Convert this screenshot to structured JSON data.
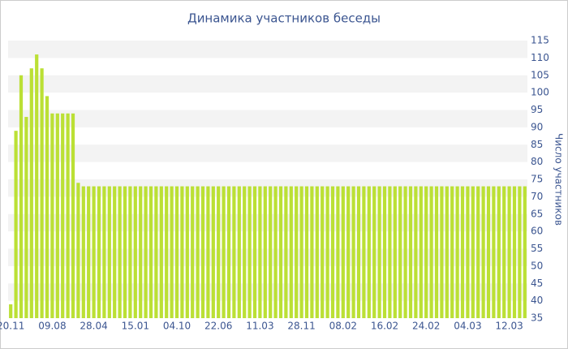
{
  "chart_data": {
    "type": "bar",
    "title": "Динамика участников беседы",
    "y_label": "Число участников",
    "categories": [
      "20.11",
      null,
      null,
      null,
      null,
      null,
      null,
      null,
      "09.08",
      null,
      null,
      null,
      null,
      null,
      null,
      null,
      "28.04",
      null,
      null,
      null,
      null,
      null,
      null,
      null,
      "15.01",
      null,
      null,
      null,
      null,
      null,
      null,
      null,
      "04.10",
      null,
      null,
      null,
      null,
      null,
      null,
      null,
      "22.06",
      null,
      null,
      null,
      null,
      null,
      null,
      null,
      "11.03",
      null,
      null,
      null,
      null,
      null,
      null,
      null,
      "28.11",
      null,
      null,
      null,
      null,
      null,
      null,
      null,
      "08.02",
      null,
      null,
      null,
      null,
      null,
      null,
      null,
      "16.02",
      null,
      null,
      null,
      null,
      null,
      null,
      null,
      "24.02",
      null,
      null,
      null,
      null,
      null,
      null,
      null,
      "04.03",
      null,
      null,
      null,
      null,
      null,
      null,
      null,
      "12.03",
      null,
      null,
      null
    ],
    "values": [
      39,
      89,
      105,
      93,
      107,
      111,
      107,
      99,
      94,
      94,
      94,
      94,
      94,
      74,
      73,
      73,
      73,
      73,
      73,
      73,
      73,
      73,
      73,
      73,
      73,
      73,
      73,
      73,
      73,
      73,
      73,
      73,
      73,
      73,
      73,
      73,
      73,
      73,
      73,
      73,
      73,
      73,
      73,
      73,
      73,
      73,
      73,
      73,
      73,
      73,
      73,
      73,
      73,
      73,
      73,
      73,
      73,
      73,
      73,
      73,
      73,
      73,
      73,
      73,
      73,
      73,
      73,
      73,
      73,
      73,
      73,
      73,
      73,
      73,
      73,
      73,
      73,
      73,
      73,
      73,
      73,
      73,
      73,
      73,
      73,
      73,
      73,
      73,
      73,
      73,
      73,
      73,
      73,
      73,
      73,
      73,
      73,
      73,
      73,
      73
    ],
    "color": "#bbe035",
    "ylim": [
      35,
      115
    ],
    "yticks": [
      35,
      40,
      45,
      50,
      55,
      60,
      65,
      70,
      75,
      80,
      85,
      90,
      95,
      100,
      105,
      110,
      115
    ],
    "grid": true
  }
}
